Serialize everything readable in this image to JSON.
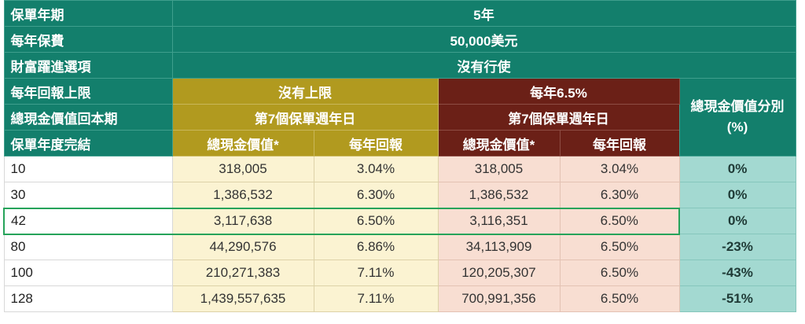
{
  "header": {
    "policy_term_label": "保單年期",
    "policy_term_value": "5年",
    "annual_premium_label": "每年保費",
    "annual_premium_value": "50,000美元",
    "wealth_option_label": "財富躍進選項",
    "wealth_option_value": "沒有行使",
    "annual_return_cap_label": "每年回報上限",
    "breakeven_label": "總現金價值回本期",
    "policy_year_end_label": "保單年度完結"
  },
  "scenarios": [
    {
      "cap": "沒有上限",
      "breakeven": "第7個保單週年日",
      "col_cash_value": "總現金價值*",
      "col_annual_return": "每年回報",
      "color": "#b19a1f"
    },
    {
      "cap": "每年6.5%",
      "breakeven": "第7個保單週年日",
      "col_cash_value": "總現金價值*",
      "col_annual_return": "每年回報",
      "color": "#6b2017"
    }
  ],
  "diff_header": "總現金價值分別 (%)",
  "rows": [
    {
      "year": "10",
      "cv1": "318,005",
      "r1": "3.04%",
      "cv2": "318,005",
      "r2": "3.04%",
      "diff": "0%"
    },
    {
      "year": "30",
      "cv1": "1,386,532",
      "r1": "6.30%",
      "cv2": "1,386,532",
      "r2": "6.30%",
      "diff": "0%"
    },
    {
      "year": "42",
      "cv1": "3,117,638",
      "r1": "6.50%",
      "cv2": "3,116,351",
      "r2": "6.50%",
      "diff": "0%"
    },
    {
      "year": "80",
      "cv1": "44,290,576",
      "r1": "6.86%",
      "cv2": "34,113,909",
      "r2": "6.50%",
      "diff": "-23%"
    },
    {
      "year": "100",
      "cv1": "210,271,383",
      "r1": "7.11%",
      "cv2": "120,205,307",
      "r2": "6.50%",
      "diff": "-43%"
    },
    {
      "year": "128",
      "cv1": "1,439,557,635",
      "r1": "7.11%",
      "cv2": "700,991,356",
      "r2": "6.50%",
      "diff": "-51%"
    }
  ],
  "highlight_color": "#26a35a"
}
